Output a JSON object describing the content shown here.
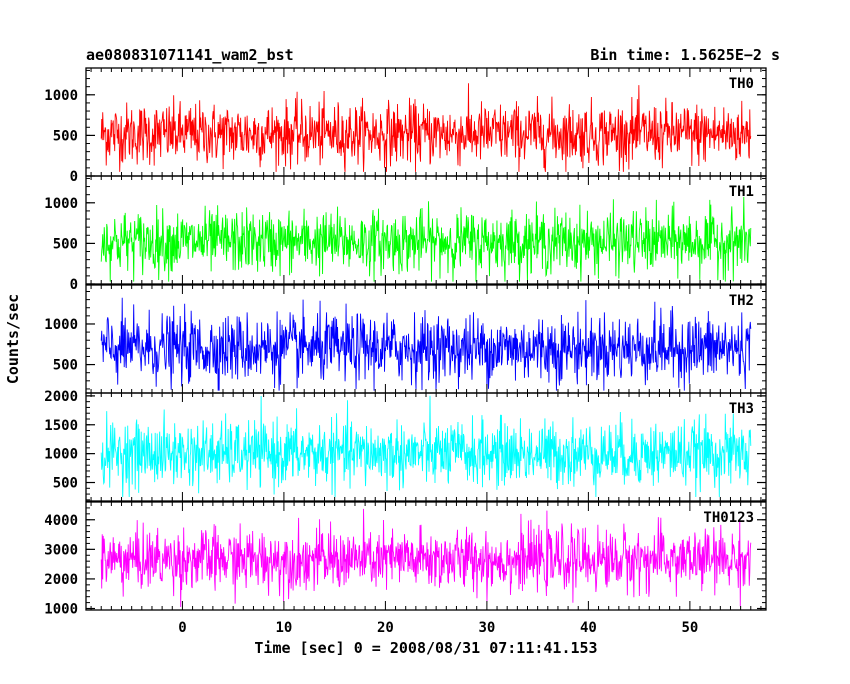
{
  "chart_data": {
    "type": "line",
    "title_left": "ae080831071141_wam2_bst",
    "title_right": "Bin time: 1.5625E−2 s",
    "xlabel": "Time [sec] 0 = 2008/08/31 07:11:41.153",
    "ylabel": "Counts/sec",
    "xlim": [
      -9.5,
      57.5
    ],
    "x_data_range": [
      -8,
      56
    ],
    "xticks": [
      0,
      10,
      20,
      30,
      40,
      50
    ],
    "xtick_labels": [
      "0",
      "10",
      "20",
      "30",
      "40",
      "50"
    ],
    "grid": false,
    "panels": [
      {
        "name": "TH0",
        "color": "#ff0000",
        "ylim": [
          0,
          1330
        ],
        "yticks": [
          0,
          500,
          1000
        ],
        "ytick_labels": [
          "0",
          "500",
          "1000"
        ],
        "mean": 520,
        "spread": 190,
        "lower_bound": 50,
        "upper_bound": 1330
      },
      {
        "name": "TH1",
        "color": "#00ff00",
        "ylim": [
          0,
          1330
        ],
        "yticks": [
          0,
          500,
          1000
        ],
        "ytick_labels": [
          "0",
          "500",
          "1000"
        ],
        "mean": 520,
        "spread": 190,
        "lower_bound": 30,
        "upper_bound": 1330
      },
      {
        "name": "TH2",
        "color": "#0000ff",
        "ylim": [
          150,
          1480
        ],
        "yticks": [
          500,
          1000
        ],
        "ytick_labels": [
          "500",
          "1000"
        ],
        "mean": 700,
        "spread": 210,
        "lower_bound": 180,
        "upper_bound": 1480
      },
      {
        "name": "TH3",
        "color": "#00ffff",
        "ylim": [
          180,
          2050
        ],
        "yticks": [
          500,
          1000,
          1500,
          2000
        ],
        "ytick_labels": [
          "500",
          "1000",
          "1500",
          "2000"
        ],
        "mean": 1000,
        "spread": 280,
        "lower_bound": 250,
        "upper_bound": 2050
      },
      {
        "name": "TH0123",
        "color": "#ff00ff",
        "ylim": [
          950,
          4600
        ],
        "yticks": [
          1000,
          2000,
          3000,
          4000
        ],
        "ytick_labels": [
          "1000",
          "2000",
          "3000",
          "4000"
        ],
        "mean": 2650,
        "spread": 520,
        "lower_bound": 1050,
        "upper_bound": 4500
      }
    ]
  }
}
